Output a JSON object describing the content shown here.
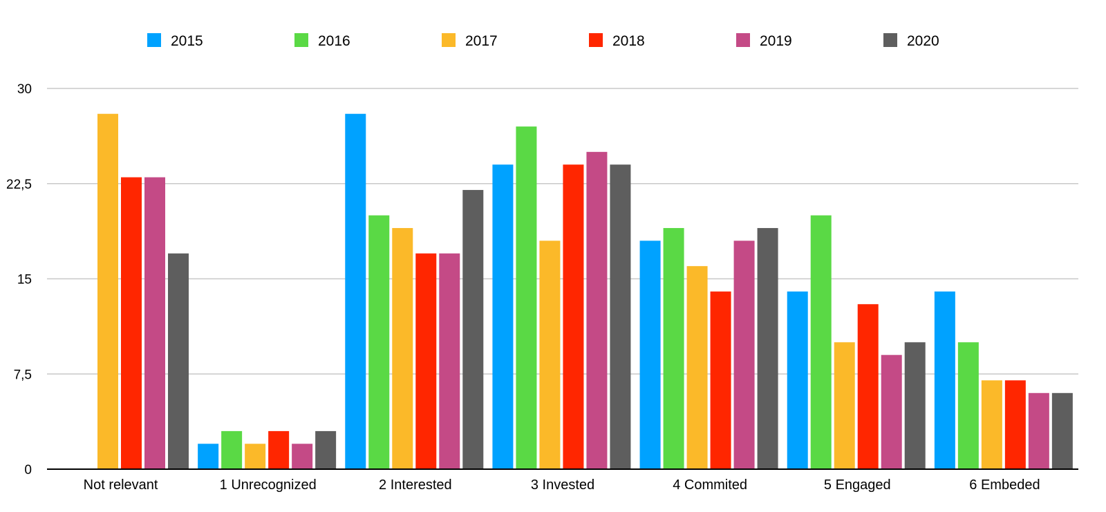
{
  "chart_data": {
    "type": "bar",
    "categories": [
      "Not relevant",
      "1 Unrecognized",
      "2 Interested",
      "3 Invested",
      "4 Commited",
      "5 Engaged",
      "6 Embeded"
    ],
    "series": [
      {
        "name": "2015",
        "color": "#00A2FF",
        "values": [
          0,
          2,
          28,
          24,
          18,
          14,
          14
        ]
      },
      {
        "name": "2016",
        "color": "#5AD945",
        "values": [
          0,
          3,
          20,
          27,
          19,
          20,
          10
        ]
      },
      {
        "name": "2017",
        "color": "#FBB929",
        "values": [
          28,
          2,
          19,
          18,
          16,
          10,
          7
        ]
      },
      {
        "name": "2018",
        "color": "#FF2600",
        "values": [
          23,
          3,
          17,
          24,
          14,
          13,
          7
        ]
      },
      {
        "name": "2019",
        "color": "#C44A86",
        "values": [
          23,
          2,
          17,
          25,
          18,
          9,
          6
        ]
      },
      {
        "name": "2020",
        "color": "#5E5E5E",
        "values": [
          17,
          3,
          22,
          24,
          19,
          10,
          6
        ]
      }
    ],
    "yticks": [
      "0",
      "7,5",
      "15",
      "22,5",
      "30"
    ],
    "ytick_values": [
      0,
      7.5,
      15,
      22.5,
      30
    ],
    "ylim": [
      0,
      30
    ],
    "grid": true,
    "legend": "top",
    "title": "",
    "xlabel": "",
    "ylabel": ""
  }
}
